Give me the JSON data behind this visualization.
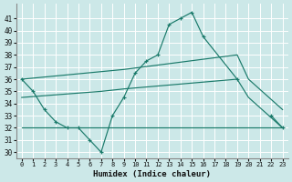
{
  "xlabel": "Humidex (Indice chaleur)",
  "background_color": "#cce8e8",
  "grid_color": "#b0d8d8",
  "line_color": "#1a7a6a",
  "x_ticks": [
    0,
    1,
    2,
    3,
    4,
    5,
    6,
    7,
    8,
    9,
    10,
    11,
    12,
    13,
    14,
    15,
    16,
    17,
    18,
    19,
    20,
    21,
    22,
    23
  ],
  "ylim": [
    29.5,
    42.2
  ],
  "xlim": [
    -0.5,
    23.5
  ],
  "y_ticks": [
    30,
    31,
    32,
    33,
    34,
    35,
    36,
    37,
    38,
    39,
    40,
    41
  ],
  "lines": [
    {
      "x": [
        0,
        1,
        2,
        3,
        4,
        5,
        6,
        7,
        8,
        9,
        10,
        11,
        12,
        13,
        14,
        15,
        16,
        19,
        20,
        21,
        22,
        23
      ],
      "y": [
        36,
        35,
        33.5,
        32.5,
        32,
        32,
        31,
        30,
        33,
        34.5,
        36.5,
        37.5,
        38.0,
        40.5,
        41,
        41.5,
        39.5,
        36,
        null,
        null,
        33,
        32
      ],
      "marker": "+"
    },
    {
      "x": [
        0,
        19,
        23
      ],
      "y": [
        32,
        32,
        32
      ],
      "marker": null
    },
    {
      "x": [
        0,
        9,
        19,
        20,
        23
      ],
      "y": [
        36,
        36.8,
        38,
        36,
        33.5
      ],
      "marker": null
    },
    {
      "x": [
        0,
        7,
        9,
        19,
        20,
        23
      ],
      "y": [
        34.5,
        35,
        35.2,
        36,
        34.5,
        32
      ],
      "marker": null
    }
  ]
}
